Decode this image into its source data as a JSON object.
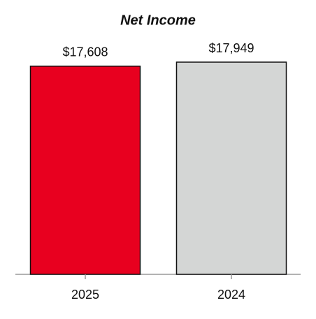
{
  "chart_data": {
    "type": "bar",
    "title": "Net Income",
    "categories": [
      "2025",
      "2024"
    ],
    "values": [
      17608,
      17949
    ],
    "value_labels": [
      "$17,608",
      "$17,949"
    ],
    "colors": [
      "#e8001f",
      "#d4d6d5"
    ]
  }
}
